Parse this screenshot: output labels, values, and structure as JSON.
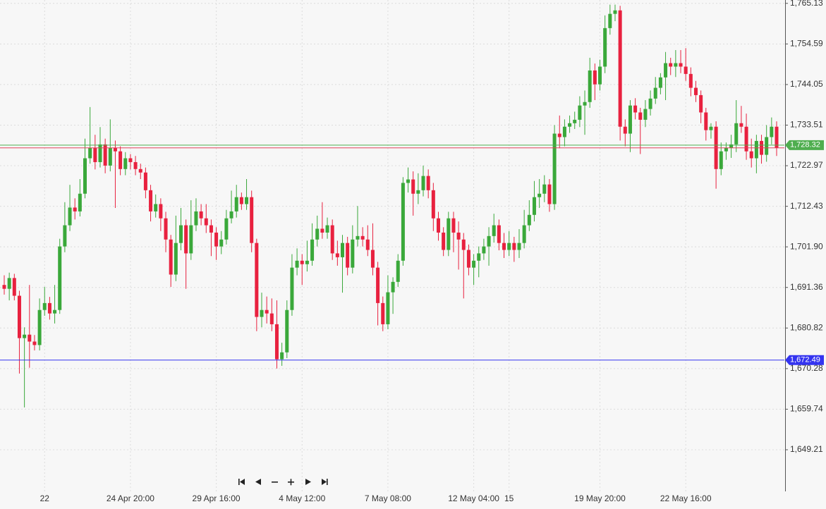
{
  "chart_data": {
    "type": "candlestick",
    "categories": [
      null,
      null,
      null,
      null,
      null,
      null,
      null,
      null,
      "22",
      null,
      null,
      null,
      null,
      null,
      null,
      null,
      null,
      null,
      null,
      null,
      null,
      null,
      null,
      null,
      null,
      "24 Apr 20:00",
      null,
      null,
      null,
      null,
      null,
      null,
      null,
      null,
      null,
      null,
      null,
      null,
      null,
      null,
      null,
      null,
      "29 Apr 16:00",
      null,
      null,
      null,
      null,
      null,
      null,
      null,
      null,
      null,
      null,
      null,
      null,
      null,
      null,
      null,
      null,
      "4 May 12:00",
      null,
      null,
      null,
      null,
      null,
      null,
      null,
      null,
      null,
      null,
      null,
      null,
      null,
      null,
      null,
      null,
      "7 May 08:00",
      null,
      null,
      null,
      null,
      null,
      null,
      null,
      null,
      null,
      null,
      null,
      null,
      null,
      null,
      null,
      null,
      "12 May 04:00",
      null,
      null,
      null,
      null,
      null,
      null,
      "15",
      null,
      null,
      null,
      null,
      null,
      null,
      null,
      null,
      null,
      null,
      null,
      null,
      null,
      null,
      null,
      null,
      null,
      "19 May 20:00",
      null,
      null,
      null,
      null,
      null,
      null,
      null,
      null,
      null,
      null,
      null,
      null,
      null,
      null,
      null,
      null,
      "22 May 16:00",
      null,
      null,
      null,
      null,
      null,
      null,
      null,
      null
    ],
    "candles": [
      [
        1692.0,
        1694.5,
        1689.5,
        1691.0
      ],
      [
        1691.0,
        1695.2,
        1688.0,
        1693.8
      ],
      [
        1693.8,
        1694.9,
        1688.0,
        1689.2
      ],
      [
        1689.2,
        1690.5,
        1669.0,
        1678.2
      ],
      [
        1678.2,
        1681.0,
        1660.2,
        1679.1
      ],
      [
        1679.1,
        1692.0,
        1670.5,
        1677.3
      ],
      [
        1677.3,
        1679.0,
        1675.0,
        1676.4
      ],
      [
        1676.4,
        1688.5,
        1675.0,
        1685.5
      ],
      [
        1685.5,
        1691.5,
        1684.0,
        1687.3
      ],
      [
        1687.3,
        1688.9,
        1683.0,
        1684.6
      ],
      [
        1684.6,
        1692.0,
        1682.0,
        1685.5
      ],
      [
        1685.5,
        1704.0,
        1684.5,
        1702.0
      ],
      [
        1702.0,
        1713.5,
        1700.5,
        1707.5
      ],
      [
        1707.5,
        1718.0,
        1706.0,
        1712.1
      ],
      [
        1712.1,
        1714.5,
        1709.0,
        1711.1
      ],
      [
        1711.1,
        1719.5,
        1709.8,
        1715.7
      ],
      [
        1715.7,
        1730.0,
        1714.5,
        1724.9
      ],
      [
        1724.9,
        1738.2,
        1723.5,
        1727.6
      ],
      [
        1727.6,
        1731.0,
        1722.0,
        1723.9
      ],
      [
        1723.9,
        1733.0,
        1722.5,
        1728.5
      ],
      [
        1728.5,
        1730.0,
        1721.0,
        1723.0
      ],
      [
        1723.0,
        1735.0,
        1721.5,
        1727.6
      ],
      [
        1727.6,
        1729.5,
        1712.0,
        1726.7
      ],
      [
        1726.7,
        1728.0,
        1720.5,
        1722.1
      ],
      [
        1722.1,
        1726.5,
        1720.5,
        1724.9
      ],
      [
        1724.9,
        1726.0,
        1722.0,
        1723.9
      ],
      [
        1723.9,
        1725.5,
        1720.5,
        1722.1
      ],
      [
        1722.1,
        1723.5,
        1719.5,
        1721.2
      ],
      [
        1721.2,
        1722.5,
        1714.5,
        1716.6
      ],
      [
        1716.6,
        1718.0,
        1708.5,
        1711.1
      ],
      [
        1711.1,
        1715.5,
        1709.5,
        1713.0
      ],
      [
        1713.0,
        1714.5,
        1706.0,
        1709.3
      ],
      [
        1709.3,
        1711.0,
        1700.5,
        1703.8
      ],
      [
        1703.8,
        1705.0,
        1691.5,
        1694.7
      ],
      [
        1694.7,
        1710.0,
        1693.0,
        1702.9
      ],
      [
        1702.9,
        1712.0,
        1701.0,
        1707.5
      ],
      [
        1707.5,
        1709.0,
        1691.0,
        1700.2
      ],
      [
        1700.2,
        1714.0,
        1698.5,
        1707.5
      ],
      [
        1707.5,
        1714.5,
        1706.0,
        1711.1
      ],
      [
        1711.1,
        1713.0,
        1707.5,
        1709.3
      ],
      [
        1709.3,
        1713.0,
        1705.5,
        1707.5
      ],
      [
        1707.5,
        1709.0,
        1699.5,
        1705.6
      ],
      [
        1705.6,
        1707.0,
        1698.5,
        1702.0
      ],
      [
        1702.0,
        1706.0,
        1700.0,
        1703.8
      ],
      [
        1703.8,
        1711.5,
        1702.5,
        1709.3
      ],
      [
        1709.3,
        1716.5,
        1708.0,
        1711.1
      ],
      [
        1711.1,
        1718.0,
        1709.5,
        1714.8
      ],
      [
        1714.8,
        1716.0,
        1711.5,
        1713.0
      ],
      [
        1713.0,
        1719.5,
        1711.5,
        1714.8
      ],
      [
        1714.8,
        1716.5,
        1700.5,
        1702.9
      ],
      [
        1702.9,
        1704.0,
        1680.0,
        1683.7
      ],
      [
        1683.7,
        1690.0,
        1681.0,
        1685.5
      ],
      [
        1685.5,
        1689.0,
        1682.0,
        1684.6
      ],
      [
        1684.6,
        1688.5,
        1680.0,
        1681.8
      ],
      [
        1681.8,
        1688.0,
        1670.3,
        1672.7
      ],
      [
        1672.7,
        1677.0,
        1671.0,
        1674.5
      ],
      [
        1674.5,
        1688.0,
        1673.0,
        1685.5
      ],
      [
        1685.5,
        1700.0,
        1684.0,
        1696.5
      ],
      [
        1696.5,
        1701.5,
        1694.5,
        1698.3
      ],
      [
        1698.3,
        1700.0,
        1692.0,
        1697.4
      ],
      [
        1697.4,
        1703.5,
        1695.5,
        1698.3
      ],
      [
        1698.3,
        1708.0,
        1697.0,
        1703.8
      ],
      [
        1703.8,
        1710.0,
        1702.0,
        1706.6
      ],
      [
        1706.6,
        1713.5,
        1704.0,
        1705.6
      ],
      [
        1705.6,
        1709.5,
        1704.0,
        1707.5
      ],
      [
        1707.5,
        1709.0,
        1698.5,
        1700.2
      ],
      [
        1700.2,
        1703.5,
        1697.0,
        1699.2
      ],
      [
        1699.2,
        1705.0,
        1690.0,
        1702.9
      ],
      [
        1702.9,
        1704.5,
        1694.5,
        1696.5
      ],
      [
        1696.5,
        1707.5,
        1695.0,
        1703.8
      ],
      [
        1703.8,
        1712.5,
        1702.0,
        1704.7
      ],
      [
        1704.7,
        1707.0,
        1702.0,
        1703.8
      ],
      [
        1703.8,
        1707.5,
        1699.5,
        1701.1
      ],
      [
        1701.1,
        1708.0,
        1694.5,
        1696.5
      ],
      [
        1696.5,
        1698.0,
        1681.5,
        1687.3
      ],
      [
        1687.3,
        1689.0,
        1680.0,
        1681.8
      ],
      [
        1681.8,
        1694.5,
        1680.5,
        1690.1
      ],
      [
        1690.1,
        1694.0,
        1684.5,
        1692.8
      ],
      [
        1692.8,
        1700.0,
        1691.5,
        1698.3
      ],
      [
        1698.3,
        1720.0,
        1697.0,
        1718.5
      ],
      [
        1718.5,
        1722.5,
        1716.0,
        1719.4
      ],
      [
        1719.4,
        1721.5,
        1710.0,
        1715.7
      ],
      [
        1715.7,
        1721.0,
        1713.0,
        1716.6
      ],
      [
        1716.6,
        1723.0,
        1715.0,
        1720.3
      ],
      [
        1720.3,
        1722.0,
        1714.5,
        1716.6
      ],
      [
        1716.6,
        1718.5,
        1706.0,
        1709.3
      ],
      [
        1709.3,
        1711.0,
        1703.5,
        1705.6
      ],
      [
        1705.6,
        1707.0,
        1699.5,
        1701.1
      ],
      [
        1701.1,
        1711.0,
        1699.5,
        1709.3
      ],
      [
        1709.3,
        1711.0,
        1700.5,
        1705.6
      ],
      [
        1705.6,
        1708.5,
        1696.0,
        1703.8
      ],
      [
        1703.8,
        1705.5,
        1688.5,
        1701.1
      ],
      [
        1701.1,
        1702.5,
        1694.5,
        1696.5
      ],
      [
        1696.5,
        1700.0,
        1692.0,
        1698.3
      ],
      [
        1698.3,
        1702.0,
        1694.0,
        1700.2
      ],
      [
        1700.2,
        1704.0,
        1698.5,
        1702.0
      ],
      [
        1702.0,
        1707.0,
        1697.0,
        1704.7
      ],
      [
        1704.7,
        1710.5,
        1703.0,
        1707.5
      ],
      [
        1707.5,
        1709.0,
        1701.0,
        1702.9
      ],
      [
        1702.9,
        1705.5,
        1699.0,
        1701.1
      ],
      [
        1701.1,
        1706.0,
        1699.5,
        1702.9
      ],
      [
        1702.9,
        1704.5,
        1698.0,
        1701.1
      ],
      [
        1701.1,
        1706.5,
        1699.0,
        1702.9
      ],
      [
        1702.9,
        1711.5,
        1701.5,
        1707.5
      ],
      [
        1707.5,
        1714.0,
        1706.0,
        1710.2
      ],
      [
        1710.2,
        1719.0,
        1708.5,
        1714.8
      ],
      [
        1714.8,
        1719.5,
        1712.0,
        1715.7
      ],
      [
        1715.7,
        1720.5,
        1713.5,
        1718.1
      ],
      [
        1718.1,
        1719.5,
        1711.0,
        1713.0
      ],
      [
        1713.0,
        1733.5,
        1711.5,
        1731.3
      ],
      [
        1731.3,
        1736.0,
        1727.5,
        1730.4
      ],
      [
        1730.4,
        1735.0,
        1728.0,
        1733.1
      ],
      [
        1733.1,
        1736.0,
        1731.5,
        1734.0
      ],
      [
        1734.0,
        1737.0,
        1732.5,
        1734.9
      ],
      [
        1734.9,
        1741.0,
        1733.0,
        1738.6
      ],
      [
        1738.6,
        1742.5,
        1731.0,
        1739.5
      ],
      [
        1739.5,
        1751.0,
        1738.0,
        1747.7
      ],
      [
        1747.7,
        1749.5,
        1740.0,
        1744.1
      ],
      [
        1744.1,
        1750.5,
        1742.5,
        1748.7
      ],
      [
        1748.7,
        1762.0,
        1747.0,
        1758.7
      ],
      [
        1758.7,
        1764.8,
        1757.0,
        1762.4
      ],
      [
        1762.4,
        1764.8,
        1760.5,
        1763.3
      ],
      [
        1763.3,
        1764.5,
        1729.5,
        1733.1
      ],
      [
        1733.1,
        1735.0,
        1728.0,
        1731.3
      ],
      [
        1731.3,
        1740.0,
        1726.5,
        1738.6
      ],
      [
        1738.6,
        1740.5,
        1735.0,
        1736.8
      ],
      [
        1736.8,
        1738.0,
        1726.0,
        1734.9
      ],
      [
        1734.9,
        1740.0,
        1733.0,
        1737.7
      ],
      [
        1737.7,
        1742.5,
        1736.0,
        1740.4
      ],
      [
        1740.4,
        1746.0,
        1739.0,
        1743.2
      ],
      [
        1743.2,
        1747.0,
        1741.5,
        1745.9
      ],
      [
        1745.9,
        1752.5,
        1740.0,
        1749.6
      ],
      [
        1749.6,
        1751.0,
        1746.5,
        1748.7
      ],
      [
        1748.7,
        1753.0,
        1746.0,
        1749.6
      ],
      [
        1749.6,
        1753.0,
        1747.0,
        1748.7
      ],
      [
        1748.7,
        1753.5,
        1745.0,
        1746.8
      ],
      [
        1746.8,
        1748.5,
        1741.0,
        1743.2
      ],
      [
        1743.2,
        1745.0,
        1739.5,
        1741.3
      ],
      [
        1741.3,
        1742.5,
        1734.0,
        1736.8
      ],
      [
        1736.8,
        1738.0,
        1729.5,
        1732.2
      ],
      [
        1732.2,
        1734.0,
        1730.0,
        1733.1
      ],
      [
        1733.1,
        1734.5,
        1717.0,
        1722.1
      ],
      [
        1722.1,
        1729.0,
        1720.5,
        1726.7
      ],
      [
        1726.7,
        1729.0,
        1724.5,
        1727.6
      ],
      [
        1727.6,
        1731.0,
        1725.0,
        1728.5
      ],
      [
        1728.5,
        1740.0,
        1726.5,
        1734.0
      ],
      [
        1734.0,
        1738.5,
        1731.5,
        1733.1
      ],
      [
        1733.1,
        1736.5,
        1724.5,
        1726.7
      ],
      [
        1726.7,
        1730.0,
        1722.5,
        1724.9
      ],
      [
        1724.9,
        1731.0,
        1721.0,
        1729.4
      ],
      [
        1729.4,
        1731.0,
        1723.5,
        1725.8
      ],
      [
        1725.8,
        1733.5,
        1724.0,
        1730.4
      ],
      [
        1730.4,
        1735.5,
        1728.5,
        1733.1
      ],
      [
        1733.1,
        1734.5,
        1725.5,
        1727.6
      ]
    ],
    "up_color": "#3aa83a",
    "down_color": "#e8213f",
    "ylim": [
      1638.4,
      1766.0
    ],
    "yticks": [
      {
        "value": 1765.13,
        "label": "1,765.13"
      },
      {
        "value": 1754.59,
        "label": "1,754.59"
      },
      {
        "value": 1744.05,
        "label": "1,744.05"
      },
      {
        "value": 1733.51,
        "label": "1,733.51"
      },
      {
        "value": 1722.97,
        "label": "1,722.97"
      },
      {
        "value": 1712.43,
        "label": "1,712.43"
      },
      {
        "value": 1701.9,
        "label": "1,701.90"
      },
      {
        "value": 1691.36,
        "label": "1,691.36"
      },
      {
        "value": 1680.82,
        "label": "1,680.82"
      },
      {
        "value": 1670.28,
        "label": "1,670.28"
      },
      {
        "value": 1659.74,
        "label": "1,659.74"
      },
      {
        "value": 1649.21,
        "label": "1,649.21"
      }
    ],
    "price_lines": [
      {
        "value": 1727.6,
        "color": "#e0405a"
      },
      {
        "value": 1728.32,
        "label": "1,728.32",
        "color": "#4fae4f"
      },
      {
        "value": 1672.49,
        "label": "1,672.49",
        "color": "#3434f0"
      }
    ],
    "grid": true
  }
}
